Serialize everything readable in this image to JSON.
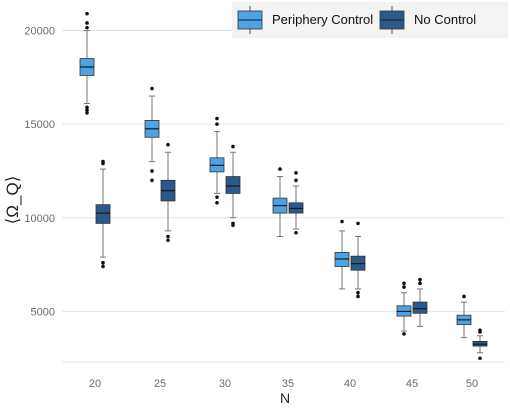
{
  "chart_data": {
    "type": "boxplot",
    "xlabel": "N",
    "ylabel": "⟨Ω_Q⟩",
    "categories": [
      "20",
      "25",
      "30",
      "35",
      "40",
      "45",
      "50"
    ],
    "ylim": [
      2300,
      21200
    ],
    "yticks": [
      5000,
      10000,
      15000,
      20000
    ],
    "grid": "horizontal",
    "legend": "top-right",
    "series": [
      {
        "name": "Periphery Control",
        "color": "#4ea3e4",
        "boxes": [
          {
            "lower": 16100,
            "q1": 17600,
            "median": 18050,
            "q3": 18500,
            "upper": 20000,
            "outliers": [
              15600,
              15750,
              15900,
              20150,
              20400,
              20900
            ]
          },
          {
            "lower": 13000,
            "q1": 14300,
            "median": 14750,
            "q3": 15200,
            "upper": 16500,
            "outliers": [
              12000,
              12500,
              16900
            ]
          },
          {
            "lower": 11300,
            "q1": 12450,
            "median": 12800,
            "q3": 13200,
            "upper": 14600,
            "outliers": [
              10800,
              11100,
              15000,
              15300
            ]
          },
          {
            "lower": 9000,
            "q1": 10250,
            "median": 10650,
            "q3": 11050,
            "upper": 12200,
            "outliers": [
              12600
            ]
          },
          {
            "lower": 6200,
            "q1": 7400,
            "median": 7800,
            "q3": 8150,
            "upper": 9300,
            "outliers": [
              9800
            ]
          },
          {
            "lower": 3950,
            "q1": 4750,
            "median": 5000,
            "q3": 5300,
            "upper": 6000,
            "outliers": [
              3800,
              6300,
              6500
            ]
          },
          {
            "lower": 3600,
            "q1": 4300,
            "median": 4550,
            "q3": 4800,
            "upper": 5500,
            "outliers": [
              5800
            ]
          }
        ]
      },
      {
        "name": "No Control",
        "color": "#2b5a8a",
        "boxes": [
          {
            "lower": 7900,
            "q1": 9700,
            "median": 10250,
            "q3": 10700,
            "upper": 12600,
            "outliers": [
              7400,
              7600,
              12900,
              13000
            ]
          },
          {
            "lower": 9300,
            "q1": 10900,
            "median": 11450,
            "q3": 12000,
            "upper": 13500,
            "outliers": [
              8800,
              9000,
              13900
            ]
          },
          {
            "lower": 10000,
            "q1": 11300,
            "median": 11700,
            "q3": 12200,
            "upper": 13500,
            "outliers": [
              9600,
              9700,
              13800
            ]
          },
          {
            "lower": 9400,
            "q1": 10250,
            "median": 10500,
            "q3": 10800,
            "upper": 11700,
            "outliers": [
              9200,
              12000,
              12400
            ]
          },
          {
            "lower": 6200,
            "q1": 7200,
            "median": 7550,
            "q3": 7950,
            "upper": 9000,
            "outliers": [
              5800,
              6000,
              9700
            ]
          },
          {
            "lower": 4200,
            "q1": 4900,
            "median": 5150,
            "q3": 5500,
            "upper": 6200,
            "outliers": [
              6500,
              6700
            ]
          },
          {
            "lower": 2800,
            "q1": 3150,
            "median": 3250,
            "q3": 3400,
            "upper": 3700,
            "outliers": [
              2500,
              3900,
              4000
            ]
          }
        ]
      }
    ]
  }
}
